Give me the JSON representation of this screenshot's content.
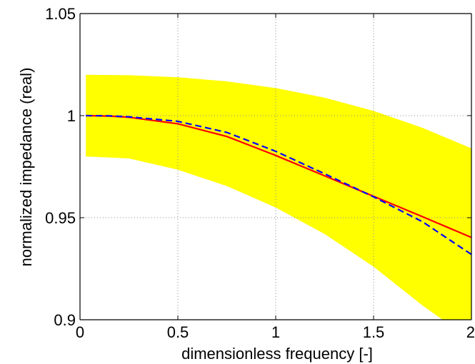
{
  "chart_data": {
    "type": "line",
    "title": "",
    "xlabel": "dimensionless frequency [-]",
    "ylabel": "normalized impedance (real)",
    "xlim": [
      0,
      2
    ],
    "ylim": [
      0.9,
      1.05
    ],
    "xticks": [
      0,
      0.5,
      1,
      1.5,
      2
    ],
    "xtick_labels": [
      "0",
      "0.5",
      "1",
      "1.5",
      "2"
    ],
    "yticks": [
      0.9,
      0.95,
      1,
      1.05
    ],
    "ytick_labels": [
      "0.9",
      "0.95",
      "1",
      "1.05"
    ],
    "grid": true,
    "grid_style": "dotted",
    "band": {
      "color": "#ffff00",
      "x": [
        0.03,
        0.25,
        0.5,
        0.75,
        1.0,
        1.25,
        1.5,
        1.75,
        2.0
      ],
      "upper": [
        1.02,
        1.0198,
        1.0188,
        1.0168,
        1.0135,
        1.0088,
        1.0023,
        0.994,
        0.984
      ],
      "lower": [
        0.98,
        0.979,
        0.9735,
        0.9655,
        0.955,
        0.942,
        0.926,
        0.907,
        0.89
      ]
    },
    "series": [
      {
        "color": "#ff0000",
        "style": "solid",
        "x": [
          0.03,
          0.15,
          0.25,
          0.5,
          0.75,
          1.0,
          1.25,
          1.5,
          1.75,
          2.0
        ],
        "values": [
          1.0,
          0.9998,
          0.9992,
          0.996,
          0.9898,
          0.9805,
          0.9705,
          0.9605,
          0.9505,
          0.9403
        ]
      },
      {
        "color": "#0000ff",
        "style": "dashed",
        "x": [
          0.03,
          0.15,
          0.25,
          0.5,
          0.75,
          1.0,
          1.25,
          1.5,
          1.75,
          2.0
        ],
        "values": [
          1.0,
          0.9999,
          0.9994,
          0.9972,
          0.9918,
          0.9825,
          0.9715,
          0.9602,
          0.948,
          0.932
        ]
      }
    ]
  }
}
